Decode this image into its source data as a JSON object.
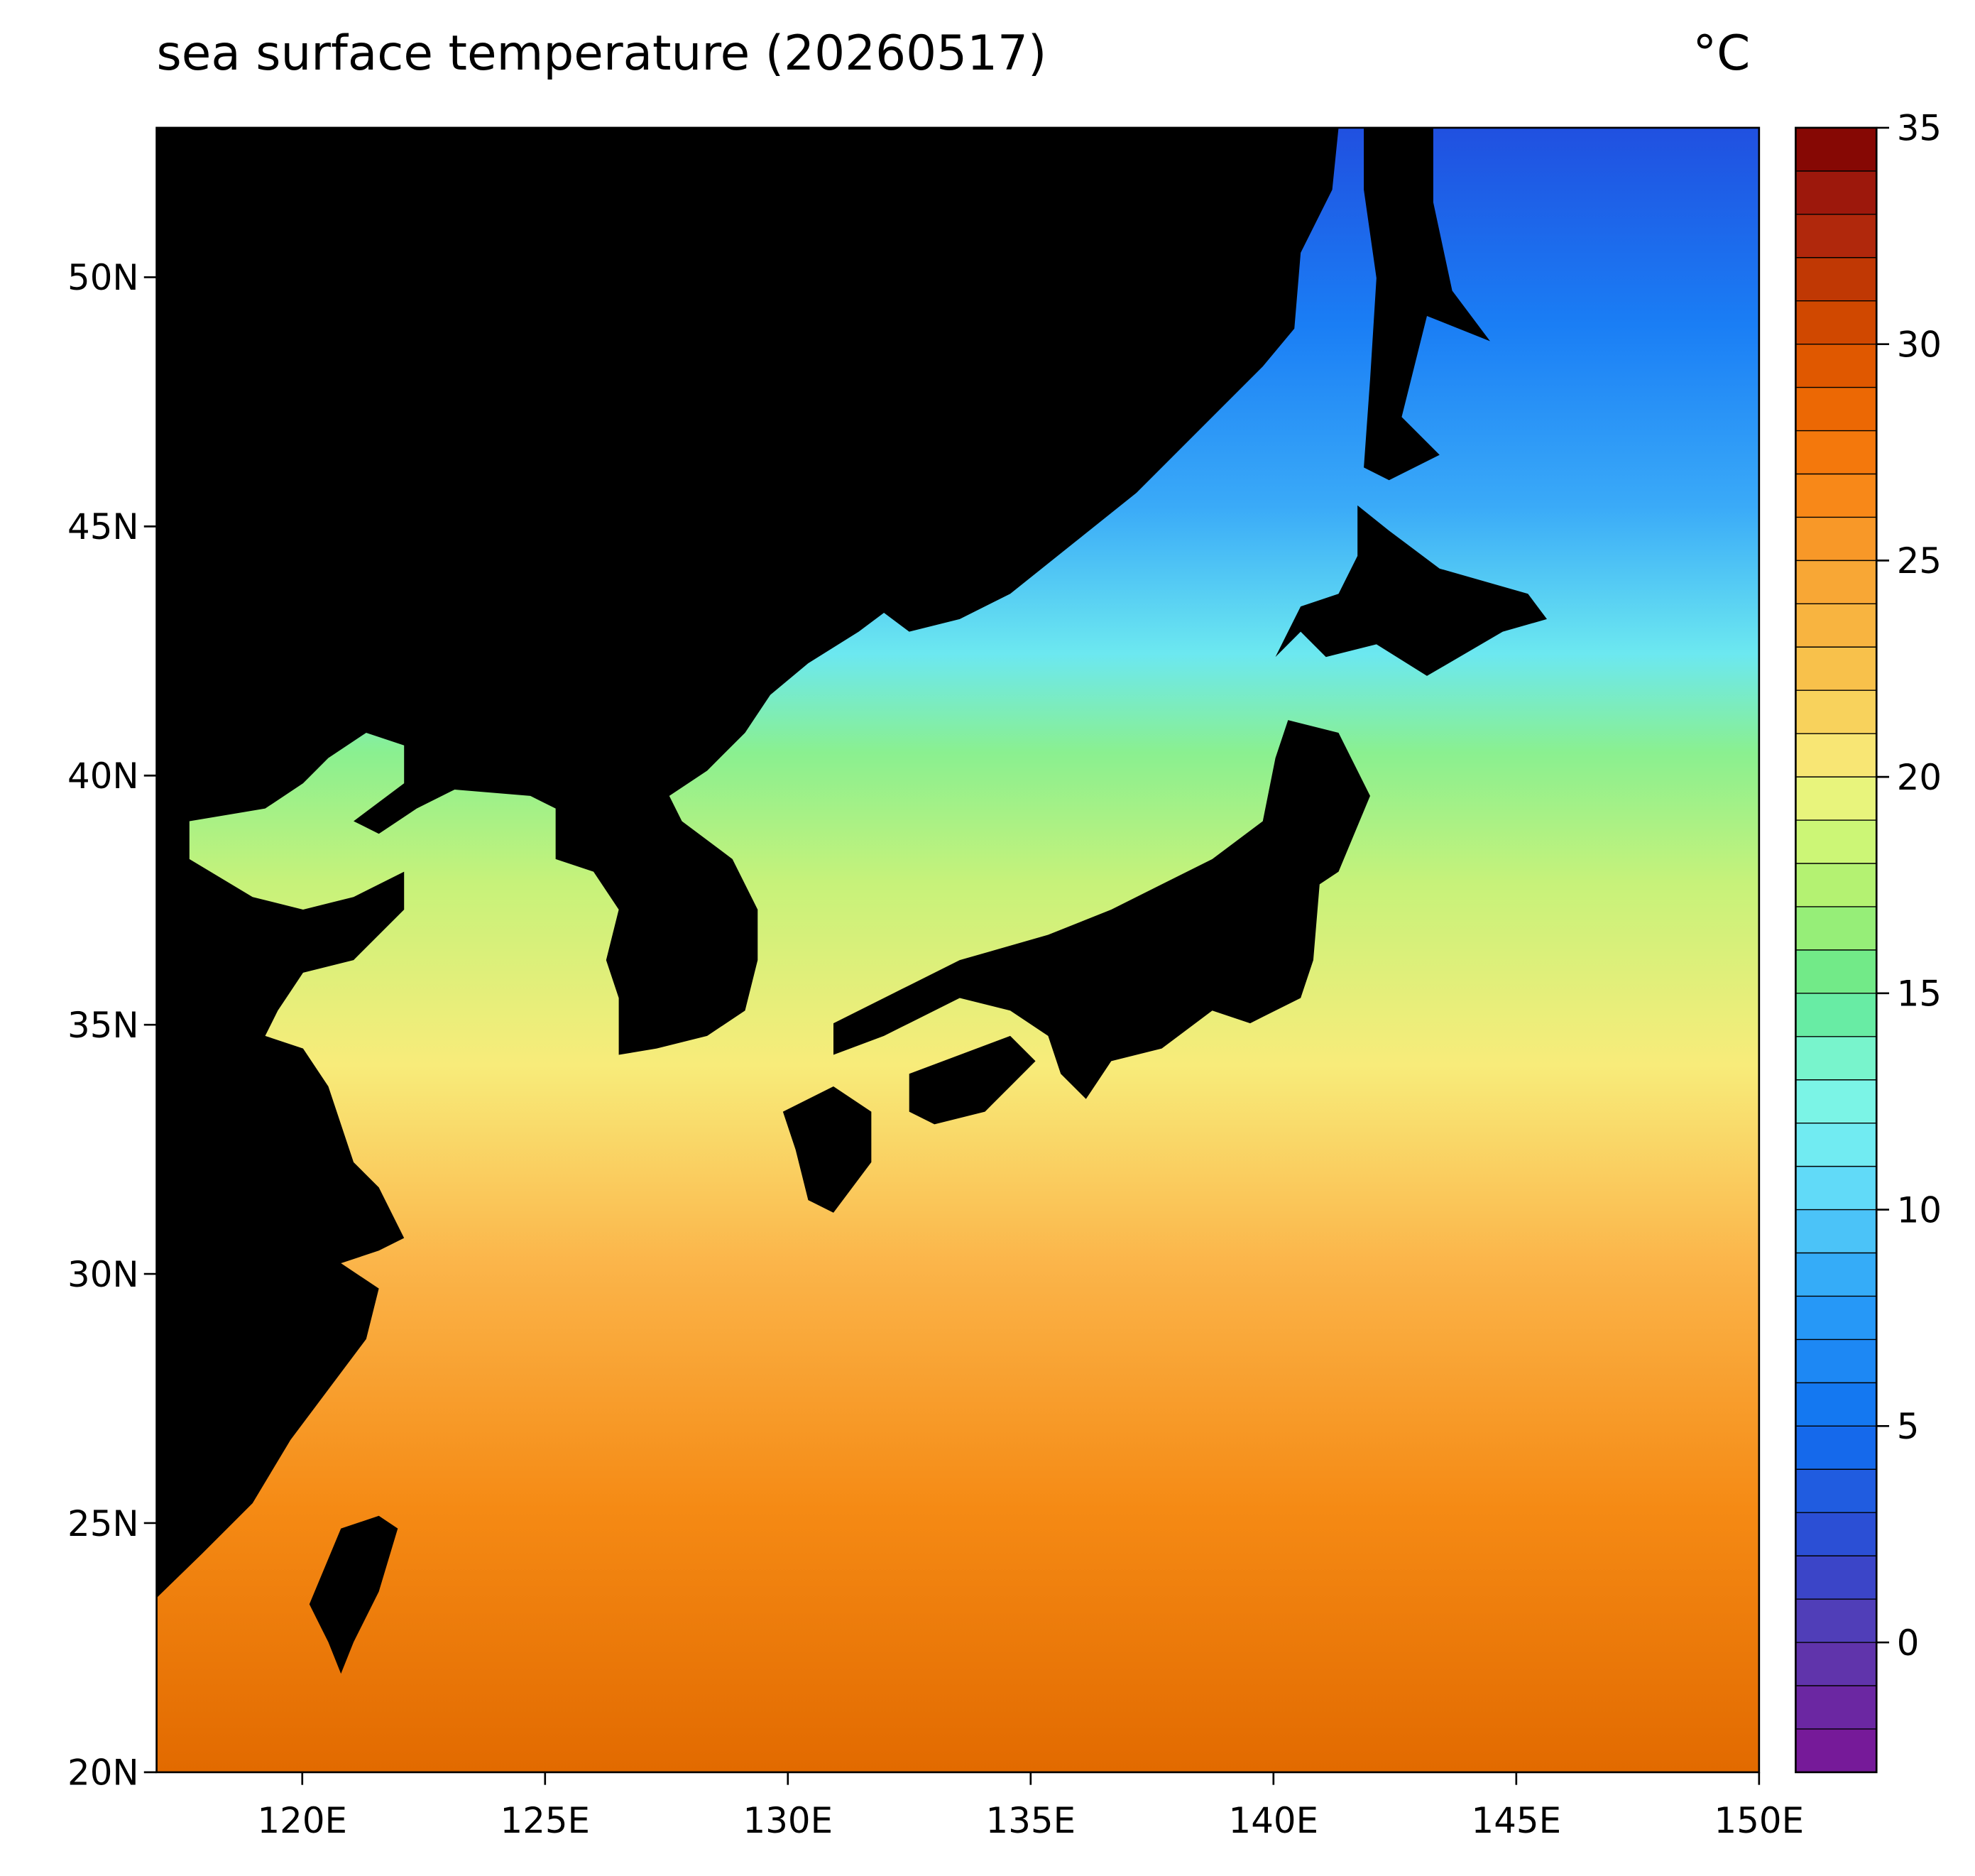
{
  "chart_data": {
    "type": "map",
    "title": "sea surface temperature (20260517)",
    "colorbar_label": "°C",
    "xlim": [
      117,
      150
    ],
    "xticks": [
      {
        "value": 120,
        "label": "120E"
      },
      {
        "value": 125,
        "label": "125E"
      },
      {
        "value": 130,
        "label": "130E"
      },
      {
        "value": 135,
        "label": "135E"
      },
      {
        "value": 140,
        "label": "140E"
      },
      {
        "value": 145,
        "label": "145E"
      },
      {
        "value": 150,
        "label": "150E"
      }
    ],
    "ylim": [
      20,
      53
    ],
    "yticks": [
      {
        "value": 20,
        "label": "20N"
      },
      {
        "value": 25,
        "label": "25N"
      },
      {
        "value": 30,
        "label": "30N"
      },
      {
        "value": 35,
        "label": "35N"
      },
      {
        "value": 40,
        "label": "40N"
      },
      {
        "value": 45,
        "label": "45N"
      },
      {
        "value": 50,
        "label": "50N"
      }
    ],
    "clim": [
      -3,
      35
    ],
    "cticks": [
      0,
      5,
      10,
      15,
      20,
      25,
      30,
      35
    ],
    "level_interval": 1,
    "land_color": "#000000",
    "colormap": [
      {
        "value": -3,
        "color": "#7b1394"
      },
      {
        "value": 0,
        "color": "#5a3ab0"
      },
      {
        "value": 2,
        "color": "#3048d0"
      },
      {
        "value": 5,
        "color": "#0f70f0"
      },
      {
        "value": 8,
        "color": "#2aa0f8"
      },
      {
        "value": 11,
        "color": "#6ce6f8"
      },
      {
        "value": 13,
        "color": "#80f8e0"
      },
      {
        "value": 15,
        "color": "#60e890"
      },
      {
        "value": 17,
        "color": "#a8f070"
      },
      {
        "value": 19,
        "color": "#d8f878"
      },
      {
        "value": 20,
        "color": "#f8f080"
      },
      {
        "value": 22,
        "color": "#f8c850"
      },
      {
        "value": 25,
        "color": "#f8a030"
      },
      {
        "value": 27,
        "color": "#f88010"
      },
      {
        "value": 29,
        "color": "#e86000"
      },
      {
        "value": 31,
        "color": "#c84000"
      },
      {
        "value": 33,
        "color": "#a82010"
      },
      {
        "value": 35,
        "color": "#7a0000"
      }
    ]
  }
}
